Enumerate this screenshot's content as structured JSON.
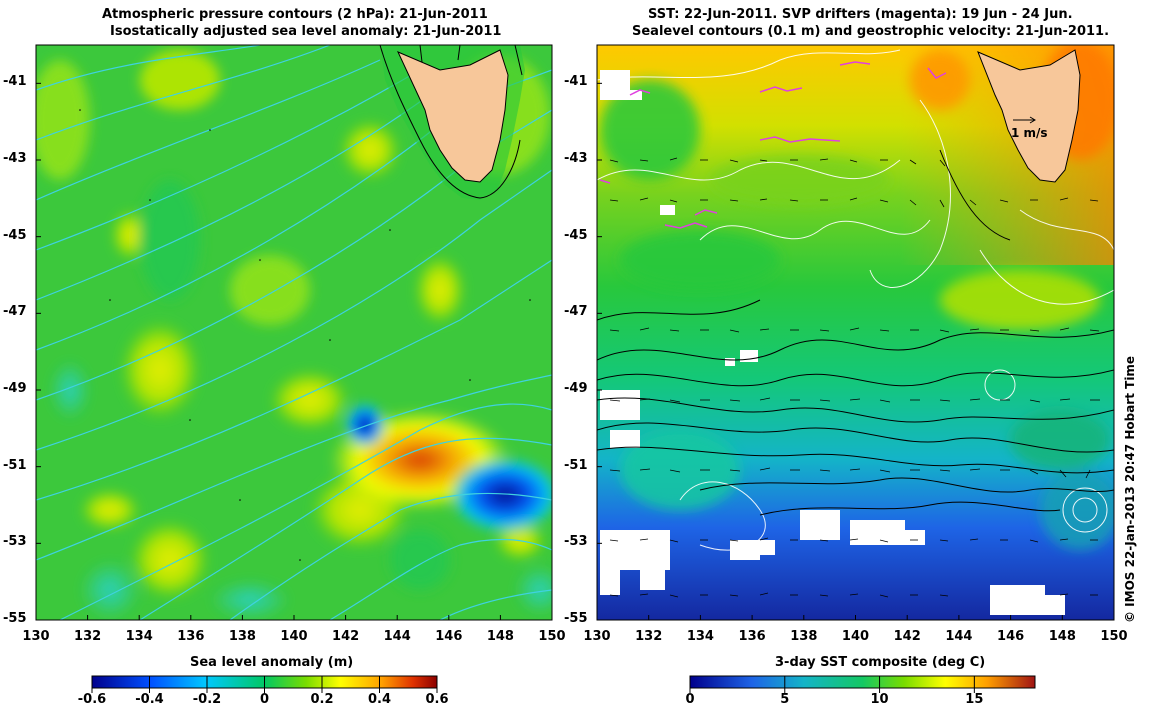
{
  "left_panel": {
    "title_line1": "Atmospheric pressure contours (2 hPa): 21-Jun-2011",
    "title_line2": "Isostatically adjusted sea level anomaly: 21-Jun-2011",
    "colorbar_title": "Sea level anomaly (m)",
    "colorbar_ticks": [
      "-0.6",
      "-0.4",
      "-0.2",
      "0",
      "0.2",
      "0.4",
      "0.6"
    ]
  },
  "right_panel": {
    "title_line1": "SST: 22-Jun-2011. SVP drifters (magenta): 19 Jun - 24 Jun.",
    "title_line2": "Sealevel contours (0.1 m) and geostrophic velocity: 21-Jun-2011.",
    "velocity_scale_label": "1 m/s",
    "colorbar_title": "3-day SST composite (deg C)",
    "colorbar_ticks": [
      "0",
      "5",
      "10",
      "15"
    ]
  },
  "axes": {
    "lon_ticks": [
      "130",
      "132",
      "134",
      "136",
      "138",
      "140",
      "142",
      "144",
      "146",
      "148",
      "150"
    ],
    "lat_ticks": [
      "-41",
      "-43",
      "-45",
      "-47",
      "-49",
      "-51",
      "-53",
      "-55"
    ]
  },
  "credit": "© IMOS 22-Jan-2013 20:47 Hobart Time",
  "colors": {
    "land": "#f7c79a",
    "pressure_contour": "#3fd2e0",
    "drifter": "#e040e0",
    "sla_scale": [
      "#00008c",
      "#0050ff",
      "#00c8ff",
      "#00c864",
      "#78dc00",
      "#ffff00",
      "#ffa000",
      "#e03200",
      "#8c0000"
    ],
    "sst_scale": [
      "#1020a0",
      "#1e64e6",
      "#14b4c8",
      "#14c864",
      "#50d21e",
      "#c8e100",
      "#ffc800",
      "#ff6400",
      "#a01414"
    ]
  }
}
